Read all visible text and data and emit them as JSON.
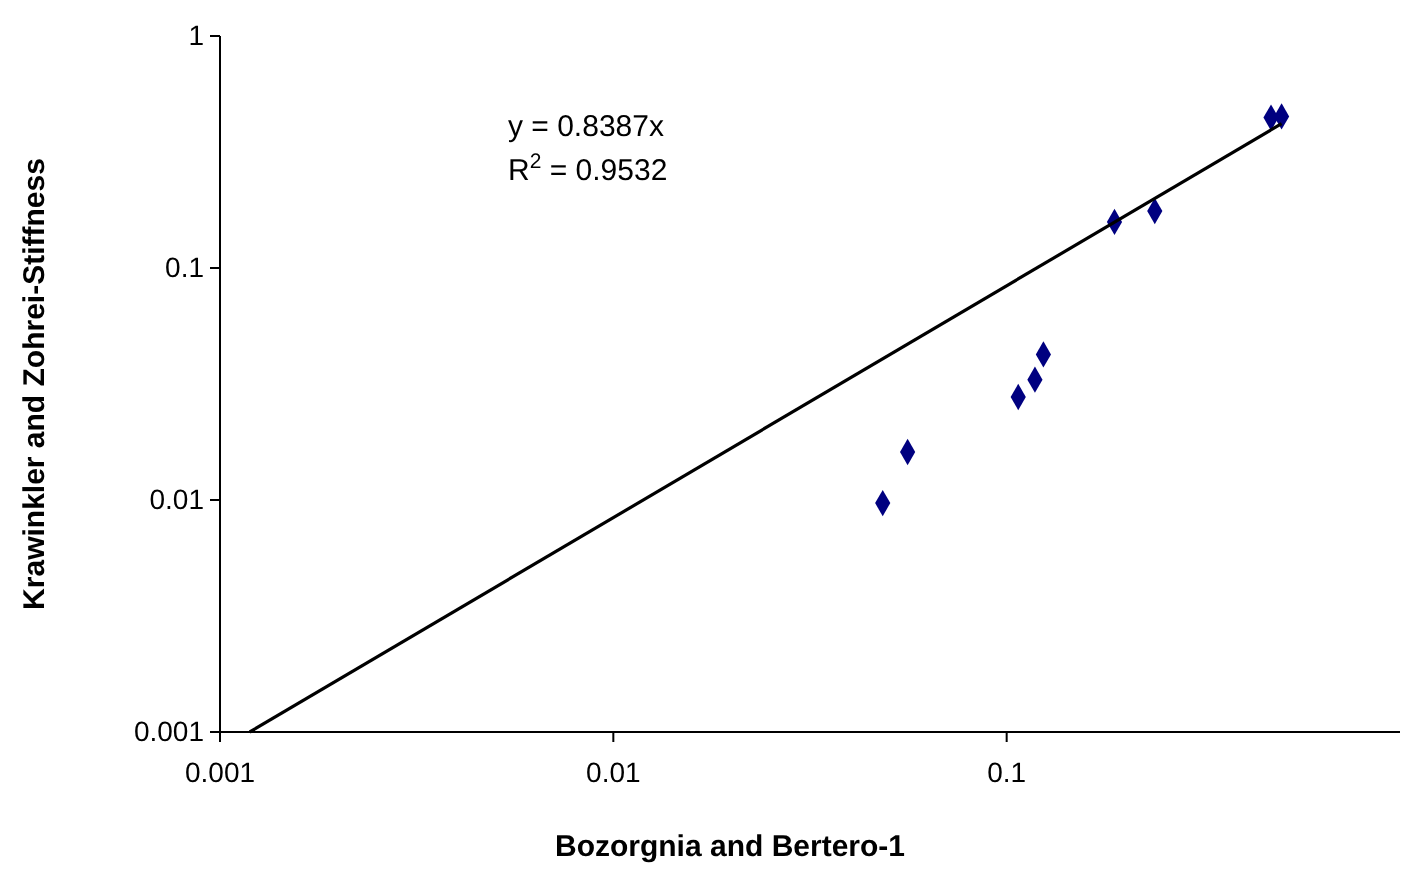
{
  "chart_data": {
    "type": "scatter",
    "xlabel": "Bozorgnia and Bertero-1",
    "ylabel": "Krawinkler and Zohrei-Stiffness",
    "log": "xy",
    "grid": false,
    "marker": "diamond",
    "xlim": [
      0.001,
      1
    ],
    "ylim": [
      0.001,
      1
    ],
    "xticks": [
      0.001,
      0.01,
      0.1
    ],
    "yticks": [
      0.001,
      0.01,
      0.1,
      1
    ],
    "annotations": [
      "y = 0.8387x",
      "R$^{2}$ = 0.9532"
    ],
    "series": [
      {
        "color": "#000080",
        "x": [
          0.0484,
          0.056,
          0.107,
          0.118,
          0.124,
          0.188,
          0.238,
          0.47,
          0.5
        ],
        "values": [
          0.0097,
          0.0161,
          0.0278,
          0.033,
          0.0424,
          0.158,
          0.176,
          0.445,
          0.45
        ]
      },
      {
        "type": "line",
        "color": "#000000",
        "marker": "none",
        "x": [
          0.00119,
          0.5
        ],
        "values": [
          0.001,
          0.419
        ]
      }
    ]
  }
}
